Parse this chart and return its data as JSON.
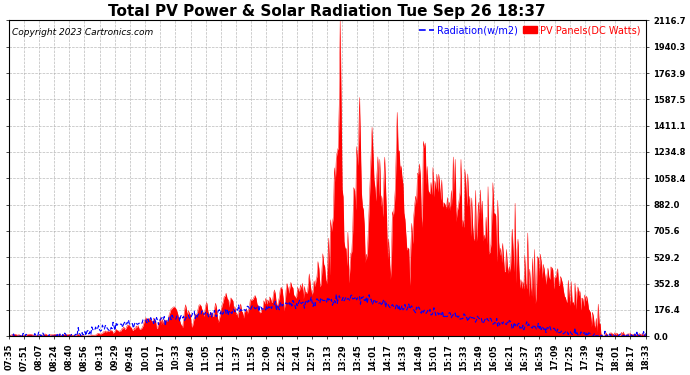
{
  "title": "Total PV Power & Solar Radiation Tue Sep 26 18:37",
  "copyright": "Copyright 2023 Cartronics.com",
  "legend_radiation": "Radiation(w/m2)",
  "legend_pv": "PV Panels(DC Watts)",
  "radiation_color": "blue",
  "pv_color": "red",
  "background_color": "#ffffff",
  "grid_color": "#aaaaaa",
  "ymax": 2116.7,
  "yticks": [
    0.0,
    176.4,
    352.8,
    529.2,
    705.6,
    882.0,
    1058.4,
    1234.8,
    1411.1,
    1587.5,
    1763.9,
    1940.3,
    2116.7
  ],
  "xtick_labels": [
    "07:35",
    "07:51",
    "08:07",
    "08:24",
    "08:40",
    "08:56",
    "09:13",
    "09:29",
    "09:45",
    "10:01",
    "10:17",
    "10:33",
    "10:49",
    "11:05",
    "11:21",
    "11:37",
    "11:53",
    "12:09",
    "12:25",
    "12:41",
    "12:57",
    "13:13",
    "13:29",
    "13:45",
    "14:01",
    "14:17",
    "14:33",
    "14:49",
    "15:01",
    "15:17",
    "15:33",
    "15:49",
    "16:05",
    "16:21",
    "16:37",
    "16:53",
    "17:09",
    "17:25",
    "17:39",
    "17:45",
    "18:01",
    "18:17",
    "18:33"
  ],
  "title_fontsize": 11,
  "axis_fontsize": 6,
  "copyright_fontsize": 6.5
}
